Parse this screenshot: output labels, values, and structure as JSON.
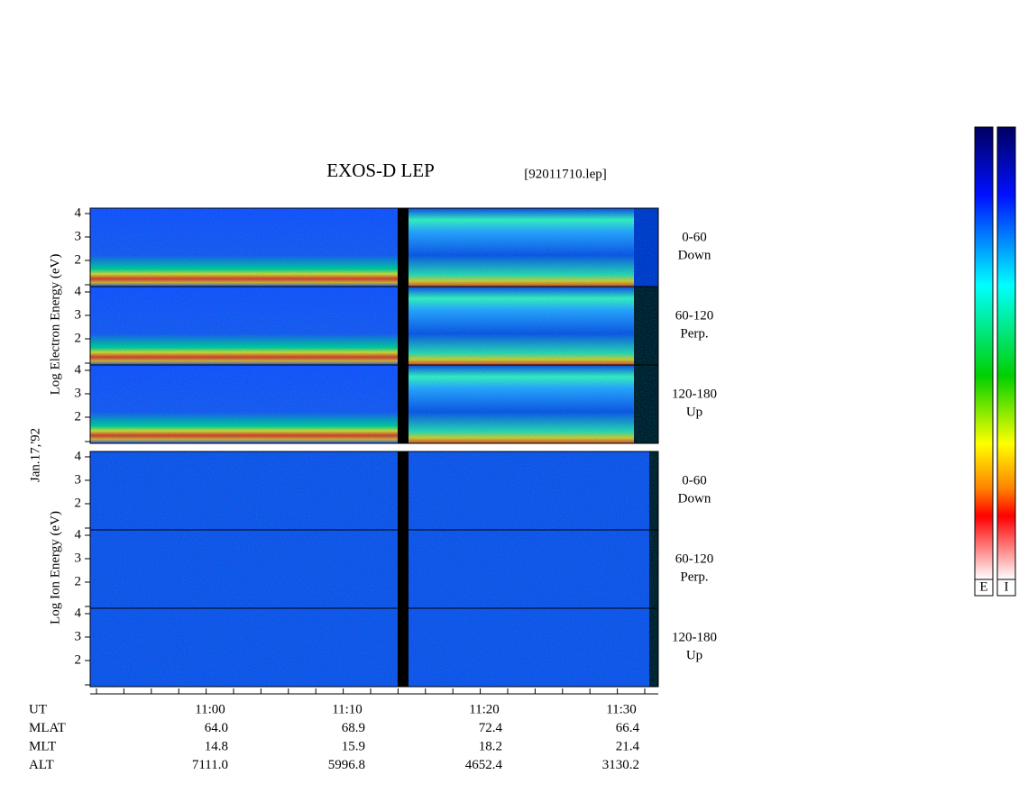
{
  "title": "EXOS-D LEP",
  "file": "[92011710.lep]",
  "electron_axis_label": "Log Electron Energy (eV)",
  "ion_axis_label": "Log Ion Energy (eV)",
  "date": "Jan.17,'92",
  "yticks": [
    2,
    3,
    4
  ],
  "panels": [
    {
      "label": "0-60",
      "sublabel": "Down"
    },
    {
      "label": "60-120",
      "sublabel": "Perp."
    },
    {
      "label": "120-180",
      "sublabel": "Up"
    }
  ],
  "orbit": {
    "row_labels": [
      "UT",
      "MLAT",
      "MLT",
      "ALT"
    ],
    "columns": [
      [
        "11:00",
        "64.0",
        "14.8",
        "7111.0"
      ],
      [
        "11:10",
        "68.9",
        "15.9",
        "5996.8"
      ],
      [
        "11:20",
        "72.4",
        "18.2",
        "4652.4"
      ],
      [
        "11:30",
        "66.4",
        "21.4",
        "3130.2"
      ]
    ]
  },
  "colorbar_labels": [
    "E",
    "I"
  ]
}
